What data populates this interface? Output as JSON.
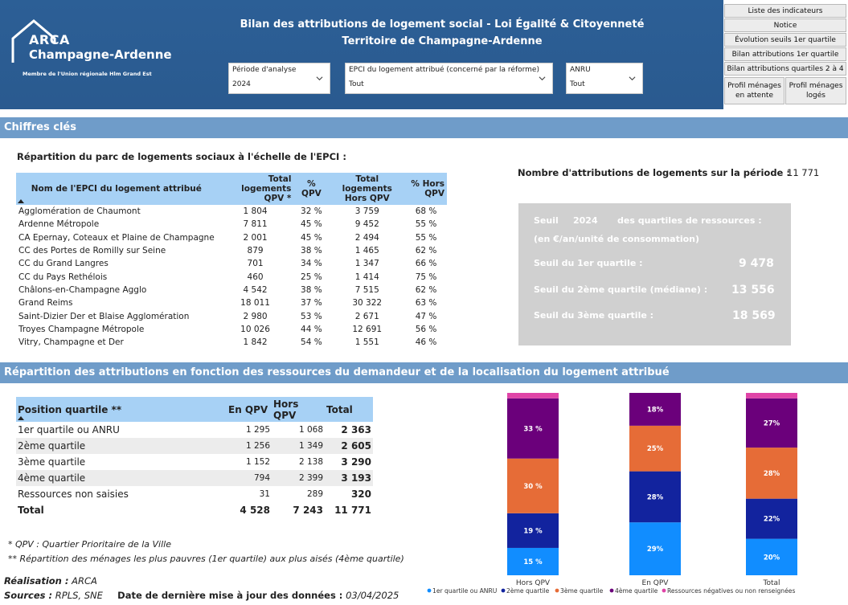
{
  "header": {
    "logo_line1": "ARCA",
    "logo_line2": "Champagne-Ardenne",
    "logo_line3": "Membre de l'Union régionale Hlm Grand Est",
    "title_line1": "Bilan des attributions de logement social - Loi Égalité & Citoyenneté",
    "title_line2": "Territoire de Champagne-Ardenne",
    "slicers": [
      {
        "label": "Période d'analyse",
        "value": "2024"
      },
      {
        "label": "EPCI du logement attribué (concerné par la réforme)",
        "value": "Tout"
      },
      {
        "label": "ANRU",
        "value": "Tout"
      }
    ]
  },
  "nav": {
    "liste": "Liste des indicateurs",
    "notice": "Notice",
    "evolution": "Évolution seuils 1er quartile",
    "bilan1": "Bilan attributions 1er quartile",
    "bilan24": "Bilan attributions quartiles 2 à 4",
    "profil_attente": "Profil ménages en attente",
    "profil_loges": "Profil ménages logés"
  },
  "sections": {
    "chiffres": "Chiffres clés",
    "repartition": "Répartition des attributions en fonction des ressources du demandeur et de la localisation du logement attribué"
  },
  "epci_table": {
    "subtitle": "Répartition du parc de logements sociaux à l'échelle de l'EPCI :",
    "headers": [
      "Nom de l'EPCI du logement attribué",
      "Total logements QPV *",
      "% QPV",
      "Total logements Hors QPV",
      "% Hors QPV"
    ],
    "rows": [
      [
        "Agglomération de Chaumont",
        "1 804",
        "32 %",
        "3 759",
        "68 %"
      ],
      [
        "Ardenne Métropole",
        "7 811",
        "45 %",
        "9 452",
        "55 %"
      ],
      [
        "CA Epernay, Coteaux et Plaine de Champagne",
        "2 001",
        "45 %",
        "2 494",
        "55 %"
      ],
      [
        "CC des Portes de Romilly sur Seine",
        "879",
        "38 %",
        "1 465",
        "62 %"
      ],
      [
        "CC du Grand Langres",
        "701",
        "34 %",
        "1 347",
        "66 %"
      ],
      [
        "CC du Pays Rethélois",
        "460",
        "25 %",
        "1 414",
        "75 %"
      ],
      [
        "Châlons-en-Champagne Agglo",
        "4 542",
        "38 %",
        "7 515",
        "62 %"
      ],
      [
        "Grand Reims",
        "18 011",
        "37 %",
        "30 322",
        "63 %"
      ],
      [
        "Saint-Dizier Der et Blaise Agglomération",
        "2 980",
        "53 %",
        "2 671",
        "47 %"
      ],
      [
        "Troyes Champagne Métropole",
        "10 026",
        "44 %",
        "12 691",
        "56 %"
      ],
      [
        "Vitry, Champagne et Der",
        "1 842",
        "54 %",
        "1 551",
        "46 %"
      ]
    ]
  },
  "attributions": {
    "label": "Nombre d'attributions de logements sur la période :",
    "value": "11 771"
  },
  "seuil": {
    "w1": "Seuil",
    "year": "2024",
    "w2": "des quartiles de ressources :",
    "unit": "(en €/an/unité de consommation)",
    "q1_label": "Seuil du 1er quartile :",
    "q1_value": "9 478",
    "q2_label": "Seuil du 2ème quartile (médiane) :",
    "q2_value": "13 556",
    "q3_label": "Seuil du 3ème quartile :",
    "q3_value": "18 569"
  },
  "res_table": {
    "headers": [
      "Position quartile **",
      "En QPV",
      "Hors QPV",
      "Total"
    ],
    "rows": [
      [
        "1er quartile ou ANRU",
        "1 295",
        "1 068",
        "2 363"
      ],
      [
        "2ème quartile",
        "1 256",
        "1 349",
        "2 605"
      ],
      [
        "3ème quartile",
        "1 152",
        "2 138",
        "3 290"
      ],
      [
        "4ème quartile",
        "794",
        "2 399",
        "3 193"
      ],
      [
        "Ressources non saisies",
        "31",
        "289",
        "320"
      ]
    ],
    "total": [
      "Total",
      "4 528",
      "7 243",
      "11 771"
    ]
  },
  "notes": {
    "qpv": "* QPV : Quartier Prioritaire de la Ville",
    "quartile": "** Répartition des ménages les plus pauvres (1er quartile) aux plus aisés (4ème quartile)",
    "realisation_label": "Réalisation :",
    "realisation_value": "ARCA",
    "sources_label": "Sources :",
    "sources_value": "RPLS, SNE",
    "date_label": "Date de dernière mise à jour des données :",
    "date_value": "03/04/2025"
  },
  "chart_data": {
    "type": "bar",
    "stacked": true,
    "percent": true,
    "categories": [
      "Hors QPV",
      "En QPV",
      "Total"
    ],
    "series": [
      {
        "name": "1er quartile ou ANRU",
        "color": "#118dff",
        "values": [
          15,
          29,
          20
        ]
      },
      {
        "name": "2ème quartile",
        "color": "#12239e",
        "values": [
          19,
          28,
          22
        ]
      },
      {
        "name": "3ème quartile",
        "color": "#e66c37",
        "values": [
          30,
          25,
          28
        ]
      },
      {
        "name": "4ème quartile",
        "color": "#6b007b",
        "values": [
          33,
          18,
          27
        ]
      },
      {
        "name": "Ressources négatives ou non renseignées",
        "color": "#e044a7",
        "values": [
          3,
          0,
          3
        ]
      }
    ],
    "data_labels": [
      [
        "15 %",
        "29%",
        "20%"
      ],
      [
        "19 %",
        "28%",
        "22%"
      ],
      [
        "30 %",
        "25%",
        "28%"
      ],
      [
        "33 %",
        "18%",
        "27%"
      ],
      [
        "",
        "",
        ""
      ]
    ],
    "legend_position": "bottom"
  }
}
